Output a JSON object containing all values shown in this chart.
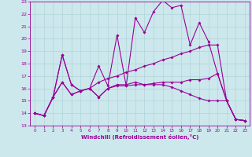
{
  "xlabel": "Windchill (Refroidissement éolien,°C)",
  "xlim": [
    -0.5,
    23.5
  ],
  "ylim": [
    13,
    23
  ],
  "xticks": [
    0,
    1,
    2,
    3,
    4,
    5,
    6,
    7,
    8,
    9,
    10,
    11,
    12,
    13,
    14,
    15,
    16,
    17,
    18,
    19,
    20,
    21,
    22,
    23
  ],
  "yticks": [
    13,
    14,
    15,
    16,
    17,
    18,
    19,
    20,
    21,
    22,
    23
  ],
  "bg_color": "#cce8ec",
  "grid_color": "#b0d4d8",
  "line_color": "#990099",
  "lines": [
    {
      "x": [
        0,
        1,
        2,
        3,
        4,
        5,
        6,
        7,
        8,
        9,
        10,
        11,
        12,
        13,
        14,
        15,
        16,
        17,
        18,
        19,
        20,
        21,
        22,
        23
      ],
      "y": [
        14.0,
        13.8,
        15.3,
        18.7,
        16.3,
        15.8,
        16.0,
        17.8,
        16.2,
        20.3,
        16.2,
        21.7,
        20.5,
        22.2,
        23.1,
        22.5,
        22.7,
        19.5,
        21.3,
        19.8,
        17.2,
        15.0,
        13.5,
        13.4
      ]
    },
    {
      "x": [
        0,
        1,
        2,
        3,
        4,
        5,
        6,
        7,
        8,
        9,
        10,
        11,
        12,
        13,
        14,
        15,
        16,
        17,
        18,
        19,
        20,
        21,
        22,
        23
      ],
      "y": [
        14.0,
        13.8,
        15.3,
        18.7,
        16.3,
        15.8,
        16.0,
        15.3,
        16.0,
        16.3,
        16.3,
        16.5,
        16.3,
        16.4,
        16.5,
        16.5,
        16.5,
        16.7,
        16.7,
        16.8,
        17.2,
        15.0,
        13.5,
        13.4
      ]
    },
    {
      "x": [
        0,
        1,
        2,
        3,
        4,
        5,
        6,
        7,
        8,
        9,
        10,
        11,
        12,
        13,
        14,
        15,
        16,
        17,
        18,
        19,
        20,
        21,
        22,
        23
      ],
      "y": [
        14.0,
        13.8,
        15.3,
        16.5,
        15.5,
        15.8,
        16.0,
        16.5,
        16.8,
        17.0,
        17.3,
        17.5,
        17.8,
        18.0,
        18.3,
        18.5,
        18.8,
        19.0,
        19.3,
        19.5,
        19.5,
        15.0,
        13.5,
        13.4
      ]
    },
    {
      "x": [
        0,
        1,
        2,
        3,
        4,
        5,
        6,
        7,
        8,
        9,
        10,
        11,
        12,
        13,
        14,
        15,
        16,
        17,
        18,
        19,
        20,
        21,
        22,
        23
      ],
      "y": [
        14.0,
        13.8,
        15.3,
        16.5,
        15.5,
        15.8,
        16.0,
        15.3,
        16.0,
        16.2,
        16.2,
        16.3,
        16.3,
        16.3,
        16.3,
        16.1,
        15.8,
        15.5,
        15.2,
        15.0,
        15.0,
        15.0,
        13.5,
        13.4
      ]
    }
  ]
}
